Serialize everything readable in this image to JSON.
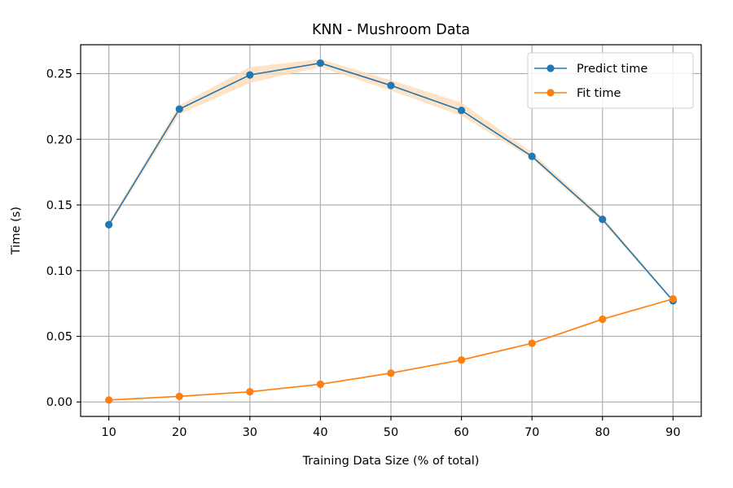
{
  "chart_data": {
    "type": "line",
    "title": "KNN - Mushroom Data",
    "xlabel": "Training Data Size (% of total)",
    "ylabel": "Time (s)",
    "x": [
      10,
      20,
      30,
      40,
      50,
      60,
      70,
      80,
      90
    ],
    "xlim": [
      6,
      94
    ],
    "ylim": [
      -0.011,
      0.272
    ],
    "xticks": [
      10,
      20,
      30,
      40,
      50,
      60,
      70,
      80,
      90
    ],
    "yticks": [
      "0.00",
      "0.05",
      "0.10",
      "0.15",
      "0.20",
      "0.25"
    ],
    "grid": true,
    "legend_position": "top-right",
    "series": [
      {
        "name": "Predict time",
        "color": "#1f77b4",
        "values": [
          0.135,
          0.223,
          0.249,
          0.258,
          0.241,
          0.222,
          0.187,
          0.139,
          0.077
        ],
        "band_low": [
          0.133,
          0.219,
          0.243,
          0.255,
          0.237,
          0.218,
          0.185,
          0.137,
          0.076
        ],
        "band_high": [
          0.137,
          0.226,
          0.255,
          0.261,
          0.245,
          0.228,
          0.19,
          0.141,
          0.078
        ]
      },
      {
        "name": "Fit time",
        "color": "#ff7f0e",
        "values": [
          0.0015,
          0.0043,
          0.0078,
          0.0135,
          0.022,
          0.032,
          0.0447,
          0.063,
          0.0785
        ],
        "band_low": [
          0.0013,
          0.004,
          0.0074,
          0.013,
          0.0215,
          0.0315,
          0.0443,
          0.0625,
          0.0782
        ],
        "band_high": [
          0.0017,
          0.0046,
          0.0082,
          0.014,
          0.0225,
          0.0325,
          0.0451,
          0.0645,
          0.0788
        ]
      }
    ]
  }
}
